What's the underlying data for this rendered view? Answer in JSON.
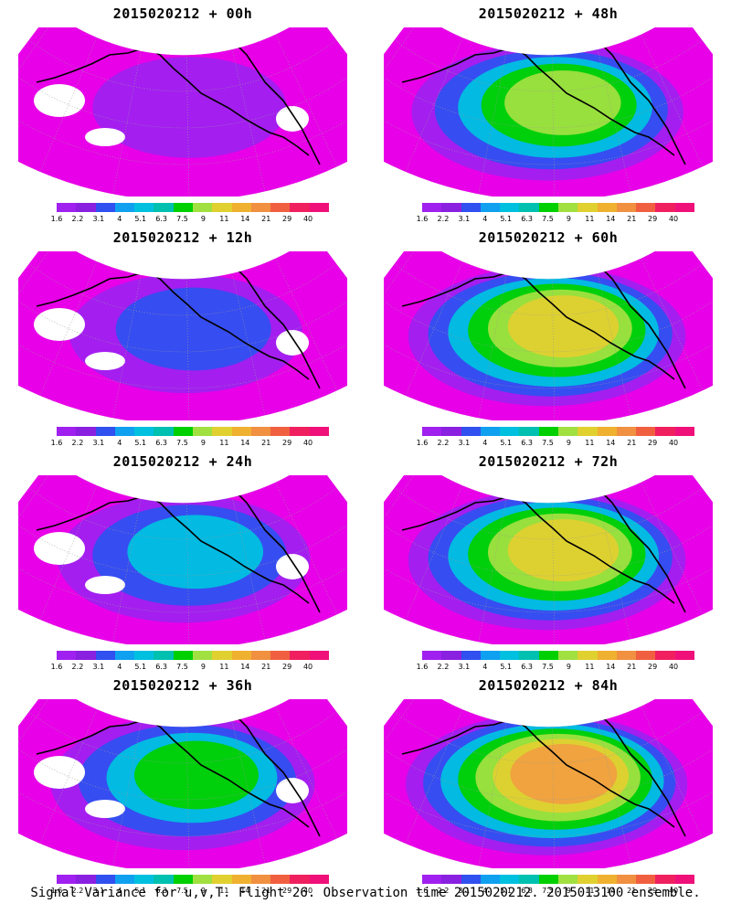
{
  "palette": {
    "magenta": "#e800e8",
    "purple": "#a020f0",
    "blue": "#3050f0",
    "cyan": "#00c0e0",
    "green": "#00d000",
    "yellowgreen": "#a0e040",
    "yellow": "#e0d030",
    "orange": "#f0a040",
    "red": "#f05050",
    "pink": "#f0107a",
    "coast": "#000000",
    "grid": "#9a9a9a"
  },
  "colorbar": {
    "colors": [
      "#a020f0",
      "#8a20e0",
      "#3050f0",
      "#10a0f0",
      "#00c0e0",
      "#00c0b0",
      "#00d000",
      "#a0e040",
      "#e0d030",
      "#f0b030",
      "#f09040",
      "#f06040",
      "#f02060",
      "#f0107a"
    ],
    "ticks": [
      "1.6",
      "2.2",
      "3.1",
      "4",
      "5.1",
      "6.3",
      "7.5",
      "9",
      "11",
      "14",
      "21",
      "29",
      "40"
    ]
  },
  "panels": [
    {
      "title": "2015020212 + 00h",
      "level": 0.05
    },
    {
      "title": "2015020212 + 48h",
      "level": 0.55
    },
    {
      "title": "2015020212 + 12h",
      "level": 0.2
    },
    {
      "title": "2015020212 + 60h",
      "level": 0.65
    },
    {
      "title": "2015020212 + 24h",
      "level": 0.35
    },
    {
      "title": "2015020212 + 72h",
      "level": 0.75
    },
    {
      "title": "2015020212 + 36h",
      "level": 0.45
    },
    {
      "title": "2015020212 + 84h",
      "level": 0.85
    }
  ],
  "caption": "Signal Variance for u,v,T. Flight 26. Observation time 2015020212. 2015013100 ensemble."
}
